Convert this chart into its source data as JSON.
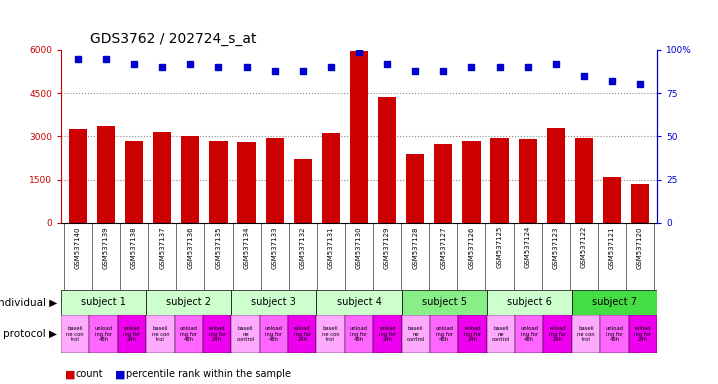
{
  "title": "GDS3762 / 202724_s_at",
  "samples": [
    "GSM537140",
    "GSM537139",
    "GSM537138",
    "GSM537137",
    "GSM537136",
    "GSM537135",
    "GSM537134",
    "GSM537133",
    "GSM537132",
    "GSM537131",
    "GSM537130",
    "GSM537129",
    "GSM537128",
    "GSM537127",
    "GSM537126",
    "GSM537125",
    "GSM537124",
    "GSM537123",
    "GSM537122",
    "GSM537121",
    "GSM537120"
  ],
  "counts": [
    3250,
    3350,
    2850,
    3150,
    3000,
    2850,
    2800,
    2950,
    2200,
    3100,
    5950,
    4350,
    2400,
    2750,
    2850,
    2950,
    2900,
    3300,
    2950,
    1600,
    1350
  ],
  "percentile_ranks": [
    95,
    95,
    92,
    90,
    92,
    90,
    90,
    88,
    88,
    90,
    99,
    92,
    88,
    88,
    90,
    90,
    90,
    92,
    85,
    82,
    80
  ],
  "ylim_left": [
    0,
    6000
  ],
  "ylim_right": [
    0,
    100
  ],
  "yticks_left": [
    0,
    1500,
    3000,
    4500,
    6000
  ],
  "ytick_labels_left": [
    "0",
    "1500",
    "3000",
    "4500",
    "6000"
  ],
  "yticks_right": [
    0,
    25,
    50,
    75,
    100
  ],
  "ytick_labels_right": [
    "0",
    "25",
    "50",
    "75",
    "100%"
  ],
  "bar_color": "#cc0000",
  "dot_color": "#0000cc",
  "grid_color": "#888888",
  "subjects": [
    {
      "label": "subject 1",
      "span": [
        0,
        3
      ],
      "color": "#ccffcc"
    },
    {
      "label": "subject 2",
      "span": [
        3,
        6
      ],
      "color": "#ccffcc"
    },
    {
      "label": "subject 3",
      "span": [
        6,
        9
      ],
      "color": "#ccffcc"
    },
    {
      "label": "subject 4",
      "span": [
        9,
        12
      ],
      "color": "#ccffcc"
    },
    {
      "label": "subject 5",
      "span": [
        12,
        15
      ],
      "color": "#88ee88"
    },
    {
      "label": "subject 6",
      "span": [
        15,
        18
      ],
      "color": "#ccffcc"
    },
    {
      "label": "subject 7",
      "span": [
        18,
        21
      ],
      "color": "#44dd44"
    }
  ],
  "protocols": [
    {
      "label": "baseli\nne con\ntrol",
      "color": "#ffaaff"
    },
    {
      "label": "unload\ning for\n48h",
      "color": "#ff66ff"
    },
    {
      "label": "reload\ning for\n24h",
      "color": "#ee00ee"
    },
    {
      "label": "baseli\nne con\ntrol",
      "color": "#ffaaff"
    },
    {
      "label": "unload\ning for\n48h",
      "color": "#ff66ff"
    },
    {
      "label": "reload\ning for\n24h",
      "color": "#ee00ee"
    },
    {
      "label": "baseli\nne\ncontrol",
      "color": "#ffaaff"
    },
    {
      "label": "unload\ning for\n48h",
      "color": "#ff66ff"
    },
    {
      "label": "reload\ning for\n24h",
      "color": "#ee00ee"
    },
    {
      "label": "baseli\nne con\ntrol",
      "color": "#ffaaff"
    },
    {
      "label": "unload\ning for\n48h",
      "color": "#ff66ff"
    },
    {
      "label": "reload\ning for\n24h",
      "color": "#ee00ee"
    },
    {
      "label": "baseli\nne\ncontrol",
      "color": "#ffaaff"
    },
    {
      "label": "unload\ning for\n48h",
      "color": "#ff66ff"
    },
    {
      "label": "reload\ning for\n24h",
      "color": "#ee00ee"
    },
    {
      "label": "baseli\nne\ncontrol",
      "color": "#ffaaff"
    },
    {
      "label": "unload\ning for\n48h",
      "color": "#ff66ff"
    },
    {
      "label": "reload\ning for\n24h",
      "color": "#ee00ee"
    },
    {
      "label": "baseli\nne con\ntrol",
      "color": "#ffaaff"
    },
    {
      "label": "unload\ning for\n48h",
      "color": "#ff66ff"
    },
    {
      "label": "reload\ning for\n24h",
      "color": "#ee00ee"
    }
  ],
  "individual_label": "individual",
  "protocol_label": "protocol",
  "legend_count_color": "#cc0000",
  "legend_dot_color": "#0000cc",
  "bg_color": "#ffffff",
  "xtick_bg": "#dddddd",
  "title_fontsize": 10,
  "tick_fontsize": 6.5,
  "label_fontsize": 8
}
